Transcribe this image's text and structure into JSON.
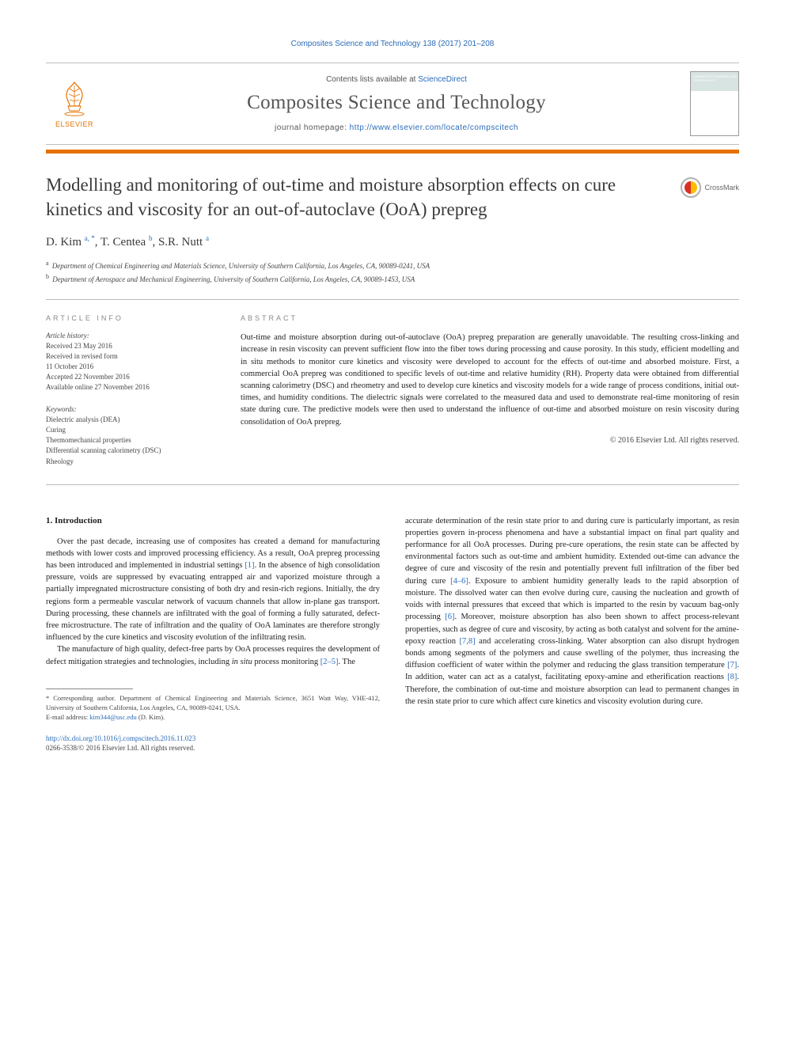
{
  "reference_line": "Composites Science and Technology 138 (2017) 201–208",
  "masthead": {
    "publisher_label": "ELSEVIER",
    "contents_prefix": "Contents lists available at ",
    "contents_link": "ScienceDirect",
    "journal_name": "Composites Science and Technology",
    "homepage_prefix": "journal homepage: ",
    "homepage_url": "http://www.elsevier.com/locate/compscitech",
    "cover_label": "COMPOSITES SCIENCE AND TECHNOLOGY",
    "accent_color": "#e57200",
    "link_color": "#2a6bb8"
  },
  "crossmark_label": "CrossMark",
  "title": "Modelling and monitoring of out-time and moisture absorption effects on cure kinetics and viscosity for an out-of-autoclave (OoA) prepreg",
  "authors_html": "D. Kim <sup>a, *</sup>, T. Centea <sup>b</sup>, S.R. Nutt <sup>a</sup>",
  "affiliations": [
    {
      "sup": "a",
      "text": "Department of Chemical Engineering and Materials Science, University of Southern California, Los Angeles, CA, 90089-0241, USA"
    },
    {
      "sup": "b",
      "text": "Department of Aerospace and Mechanical Engineering, University of Southern California, Los Angeles, CA, 90089-1453, USA"
    }
  ],
  "article_info": {
    "heading": "ARTICLE INFO",
    "history_label": "Article history:",
    "history": [
      "Received 23 May 2016",
      "Received in revised form",
      "11 October 2016",
      "Accepted 22 November 2016",
      "Available online 27 November 2016"
    ],
    "keywords_label": "Keywords:",
    "keywords": [
      "Dielectric analysis (DEA)",
      "Curing",
      "Thermomechanical properties",
      "Differential scanning calorimetry (DSC)",
      "Rheology"
    ]
  },
  "abstract": {
    "heading": "ABSTRACT",
    "text": "Out-time and moisture absorption during out-of-autoclave (OoA) prepreg preparation are generally unavoidable. The resulting cross-linking and increase in resin viscosity can prevent sufficient flow into the fiber tows during processing and cause porosity. In this study, efficient modelling and in situ methods to monitor cure kinetics and viscosity were developed to account for the effects of out-time and absorbed moisture. First, a commercial OoA prepreg was conditioned to specific levels of out-time and relative humidity (RH). Property data were obtained from differential scanning calorimetry (DSC) and rheometry and used to develop cure kinetics and viscosity models for a wide range of process conditions, initial out-times, and humidity conditions. The dielectric signals were correlated to the measured data and used to demonstrate real-time monitoring of resin state during cure. The predictive models were then used to understand the influence of out-time and absorbed moisture on resin viscosity during consolidation of OoA prepreg.",
    "copyright": "© 2016 Elsevier Ltd. All rights reserved."
  },
  "section1": {
    "heading": "1. Introduction",
    "p1": "Over the past decade, increasing use of composites has created a demand for manufacturing methods with lower costs and improved processing efficiency. As a result, OoA prepreg processing has been introduced and implemented in industrial settings [1]. In the absence of high consolidation pressure, voids are suppressed by evacuating entrapped air and vaporized moisture through a partially impregnated microstructure consisting of both dry and resin-rich regions. Initially, the dry regions form a permeable vascular network of vacuum channels that allow in-plane gas transport. During processing, these channels are infiltrated with the goal of forming a fully saturated, defect-free microstructure. The rate of infiltration and the quality of OoA laminates are therefore strongly influenced by the cure kinetics and viscosity evolution of the infiltrating resin.",
    "p2": "The manufacture of high quality, defect-free parts by OoA processes requires the development of defect mitigation strategies and technologies, including in situ process monitoring [2–5]. The",
    "p3": "accurate determination of the resin state prior to and during cure is particularly important, as resin properties govern in-process phenomena and have a substantial impact on final part quality and performance for all OoA processes. During pre-cure operations, the resin state can be affected by environmental factors such as out-time and ambient humidity. Extended out-time can advance the degree of cure and viscosity of the resin and potentially prevent full infiltration of the fiber bed during cure [4–6]. Exposure to ambient humidity generally leads to the rapid absorption of moisture. The dissolved water can then evolve during cure, causing the nucleation and growth of voids with internal pressures that exceed that which is imparted to the resin by vacuum bag-only processing [6]. Moreover, moisture absorption has also been shown to affect process-relevant properties, such as degree of cure and viscosity, by acting as both catalyst and solvent for the amine-epoxy reaction [7,8] and accelerating cross-linking. Water absorption can also disrupt hydrogen bonds among segments of the polymers and cause swelling of the polymer, thus increasing the diffusion coefficient of water within the polymer and reducing the glass transition temperature [7]. In addition, water can act as a catalyst, facilitating epoxy-amine and etherification reactions [8]. Therefore, the combination of out-time and moisture absorption can lead to permanent changes in the resin state prior to cure which affect cure kinetics and viscosity evolution during cure."
  },
  "refs": {
    "r1": "[1]",
    "r25": "[2–5]",
    "r46": "[4–6]",
    "r6": "[6]",
    "r78": "[7,8]",
    "r7": "[7]",
    "r8": "[8]"
  },
  "footnote": {
    "corr": "* Corresponding author. Department of Chemical Engineering and Materials Science, 3651 Watt Way, VHE-412, University of Southern California, Los Angeles, CA, 90089-0241, USA.",
    "email_label": "E-mail address: ",
    "email": "kim344@usc.edu",
    "email_paren": " (D. Kim)."
  },
  "doi": {
    "url": "http://dx.doi.org/10.1016/j.compscitech.2016.11.023",
    "issn_copy": "0266-3538/© 2016 Elsevier Ltd. All rights reserved."
  }
}
